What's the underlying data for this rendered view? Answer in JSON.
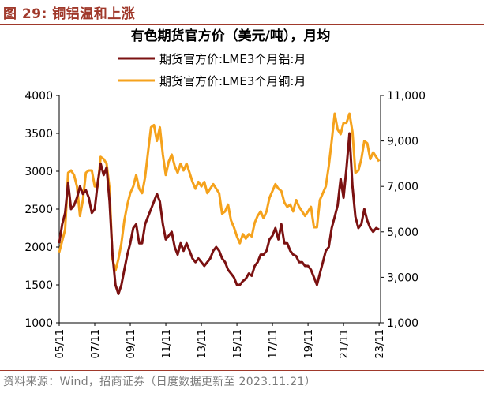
{
  "figure": {
    "label": "图 29:",
    "title": "铜铝温和上涨"
  },
  "source": "资料来源：Wind，招商证券（日度数据更新至 2023.11.21）",
  "colors": {
    "aluminum": "#7b1111",
    "copper": "#f5a21c",
    "accent": "#a0392b"
  },
  "chart_data": {
    "type": "line",
    "title": "有色期货官方价（美元/吨），月均",
    "x_ticks": [
      "05/11",
      "07/11",
      "09/11",
      "11/11",
      "13/11",
      "15/11",
      "17/11",
      "19/11",
      "21/11",
      "23/11"
    ],
    "legend_position": "top-center",
    "grid": false,
    "y_left": {
      "range": [
        1000,
        4000
      ],
      "ticks": [
        "1000",
        "1500",
        "2000",
        "2500",
        "3000",
        "3500",
        "4000"
      ],
      "tick_values": [
        1000,
        1500,
        2000,
        2500,
        3000,
        3500,
        4000
      ]
    },
    "y_right": {
      "range": [
        1000,
        11000
      ],
      "ticks": [
        "1,000",
        "3,000",
        "5,000",
        "7,000",
        "9,000",
        "11,000"
      ],
      "tick_values": [
        1000,
        3000,
        5000,
        7000,
        9000,
        11000
      ]
    },
    "series": [
      {
        "name": "期货官方价:LME3个月铝:月",
        "axis": "left",
        "color": "#7b1111",
        "points": [
          [
            "2005-11",
            2050
          ],
          [
            "2006-01",
            2300
          ],
          [
            "2006-03",
            2450
          ],
          [
            "2006-05",
            2850
          ],
          [
            "2006-07",
            2500
          ],
          [
            "2006-09",
            2550
          ],
          [
            "2006-11",
            2650
          ],
          [
            "2007-01",
            2800
          ],
          [
            "2007-03",
            2700
          ],
          [
            "2007-05",
            2750
          ],
          [
            "2007-07",
            2650
          ],
          [
            "2007-09",
            2450
          ],
          [
            "2007-11",
            2500
          ],
          [
            "2008-01",
            2850
          ],
          [
            "2008-03",
            3100
          ],
          [
            "2008-05",
            2950
          ],
          [
            "2008-07",
            3050
          ],
          [
            "2008-09",
            2600
          ],
          [
            "2008-11",
            1900
          ],
          [
            "2009-01",
            1500
          ],
          [
            "2009-03",
            1380
          ],
          [
            "2009-05",
            1500
          ],
          [
            "2009-07",
            1700
          ],
          [
            "2009-09",
            1900
          ],
          [
            "2009-11",
            2050
          ],
          [
            "2010-01",
            2250
          ],
          [
            "2010-03",
            2300
          ],
          [
            "2010-05",
            2050
          ],
          [
            "2010-07",
            2050
          ],
          [
            "2010-09",
            2300
          ],
          [
            "2010-11",
            2400
          ],
          [
            "2011-01",
            2500
          ],
          [
            "2011-03",
            2600
          ],
          [
            "2011-05",
            2700
          ],
          [
            "2011-07",
            2600
          ],
          [
            "2011-09",
            2300
          ],
          [
            "2011-11",
            2100
          ],
          [
            "2012-01",
            2150
          ],
          [
            "2012-03",
            2200
          ],
          [
            "2012-05",
            2000
          ],
          [
            "2012-07",
            1900
          ],
          [
            "2012-09",
            2050
          ],
          [
            "2012-11",
            1950
          ],
          [
            "2013-01",
            2050
          ],
          [
            "2013-03",
            1950
          ],
          [
            "2013-05",
            1850
          ],
          [
            "2013-07",
            1800
          ],
          [
            "2013-09",
            1850
          ],
          [
            "2013-11",
            1800
          ],
          [
            "2014-01",
            1750
          ],
          [
            "2014-03",
            1800
          ],
          [
            "2014-05",
            1850
          ],
          [
            "2014-07",
            1950
          ],
          [
            "2014-09",
            2000
          ],
          [
            "2014-11",
            1950
          ],
          [
            "2015-01",
            1850
          ],
          [
            "2015-03",
            1800
          ],
          [
            "2015-05",
            1700
          ],
          [
            "2015-07",
            1650
          ],
          [
            "2015-09",
            1600
          ],
          [
            "2015-11",
            1500
          ],
          [
            "2016-01",
            1500
          ],
          [
            "2016-03",
            1550
          ],
          [
            "2016-05",
            1580
          ],
          [
            "2016-07",
            1650
          ],
          [
            "2016-09",
            1620
          ],
          [
            "2016-11",
            1750
          ],
          [
            "2017-01",
            1800
          ],
          [
            "2017-03",
            1900
          ],
          [
            "2017-05",
            1900
          ],
          [
            "2017-07",
            1950
          ],
          [
            "2017-09",
            2100
          ],
          [
            "2017-11",
            2150
          ],
          [
            "2018-01",
            2250
          ],
          [
            "2018-03",
            2100
          ],
          [
            "2018-05",
            2300
          ],
          [
            "2018-07",
            2050
          ],
          [
            "2018-09",
            2050
          ],
          [
            "2018-11",
            1950
          ],
          [
            "2019-01",
            1900
          ],
          [
            "2019-03",
            1880
          ],
          [
            "2019-05",
            1800
          ],
          [
            "2019-07",
            1800
          ],
          [
            "2019-09",
            1750
          ],
          [
            "2019-11",
            1750
          ],
          [
            "2020-01",
            1700
          ],
          [
            "2020-03",
            1600
          ],
          [
            "2020-05",
            1500
          ],
          [
            "2020-07",
            1650
          ],
          [
            "2020-09",
            1800
          ],
          [
            "2020-11",
            1950
          ],
          [
            "2021-01",
            2000
          ],
          [
            "2021-03",
            2250
          ],
          [
            "2021-05",
            2400
          ],
          [
            "2021-07",
            2550
          ],
          [
            "2021-09",
            2900
          ],
          [
            "2021-11",
            2650
          ],
          [
            "2022-01",
            3050
          ],
          [
            "2022-03",
            3500
          ],
          [
            "2022-05",
            2800
          ],
          [
            "2022-07",
            2400
          ],
          [
            "2022-09",
            2250
          ],
          [
            "2022-11",
            2300
          ],
          [
            "2023-01",
            2500
          ],
          [
            "2023-03",
            2350
          ],
          [
            "2023-05",
            2250
          ],
          [
            "2023-07",
            2200
          ],
          [
            "2023-09",
            2250
          ],
          [
            "2023-11",
            2230
          ]
        ]
      },
      {
        "name": "期货官方价:LME3个月铜:月",
        "axis": "right",
        "color": "#f5a21c",
        "points": [
          [
            "2005-11",
            4100
          ],
          [
            "2006-01",
            4600
          ],
          [
            "2006-03",
            5100
          ],
          [
            "2006-05",
            7600
          ],
          [
            "2006-07",
            7700
          ],
          [
            "2006-09",
            7500
          ],
          [
            "2006-11",
            7000
          ],
          [
            "2007-01",
            5700
          ],
          [
            "2007-03",
            6400
          ],
          [
            "2007-05",
            7600
          ],
          [
            "2007-07",
            7700
          ],
          [
            "2007-09",
            7700
          ],
          [
            "2007-11",
            7000
          ],
          [
            "2008-01",
            7000
          ],
          [
            "2008-03",
            8300
          ],
          [
            "2008-05",
            8200
          ],
          [
            "2008-07",
            8000
          ],
          [
            "2008-09",
            6900
          ],
          [
            "2008-11",
            3800
          ],
          [
            "2009-01",
            3300
          ],
          [
            "2009-03",
            3800
          ],
          [
            "2009-05",
            4500
          ],
          [
            "2009-07",
            5500
          ],
          [
            "2009-09",
            6200
          ],
          [
            "2009-11",
            6700
          ],
          [
            "2010-01",
            7000
          ],
          [
            "2010-03",
            7500
          ],
          [
            "2010-05",
            6900
          ],
          [
            "2010-07",
            6700
          ],
          [
            "2010-09",
            7400
          ],
          [
            "2010-11",
            8500
          ],
          [
            "2011-01",
            9600
          ],
          [
            "2011-03",
            9700
          ],
          [
            "2011-05",
            9000
          ],
          [
            "2011-07",
            9600
          ],
          [
            "2011-09",
            8400
          ],
          [
            "2011-11",
            7500
          ],
          [
            "2012-01",
            8100
          ],
          [
            "2012-03",
            8400
          ],
          [
            "2012-05",
            7900
          ],
          [
            "2012-07",
            7600
          ],
          [
            "2012-09",
            8000
          ],
          [
            "2012-11",
            7700
          ],
          [
            "2013-01",
            8000
          ],
          [
            "2013-03",
            7600
          ],
          [
            "2013-05",
            7200
          ],
          [
            "2013-07",
            6900
          ],
          [
            "2013-09",
            7200
          ],
          [
            "2013-11",
            7000
          ],
          [
            "2014-01",
            7200
          ],
          [
            "2014-03",
            6700
          ],
          [
            "2014-05",
            6900
          ],
          [
            "2014-07",
            7100
          ],
          [
            "2014-09",
            6900
          ],
          [
            "2014-11",
            6700
          ],
          [
            "2015-01",
            5800
          ],
          [
            "2015-03",
            5900
          ],
          [
            "2015-05",
            6200
          ],
          [
            "2015-07",
            5500
          ],
          [
            "2015-09",
            5200
          ],
          [
            "2015-11",
            4800
          ],
          [
            "2016-01",
            4500
          ],
          [
            "2016-03",
            4900
          ],
          [
            "2016-05",
            4700
          ],
          [
            "2016-07",
            4900
          ],
          [
            "2016-09",
            4800
          ],
          [
            "2016-11",
            5400
          ],
          [
            "2017-01",
            5700
          ],
          [
            "2017-03",
            5900
          ],
          [
            "2017-05",
            5600
          ],
          [
            "2017-07",
            5900
          ],
          [
            "2017-09",
            6500
          ],
          [
            "2017-11",
            6800
          ],
          [
            "2018-01",
            7100
          ],
          [
            "2018-03",
            6900
          ],
          [
            "2018-05",
            6800
          ],
          [
            "2018-07",
            6300
          ],
          [
            "2018-09",
            6100
          ],
          [
            "2018-11",
            6200
          ],
          [
            "2019-01",
            5900
          ],
          [
            "2019-03",
            6400
          ],
          [
            "2019-05",
            6100
          ],
          [
            "2019-07",
            5900
          ],
          [
            "2019-09",
            5700
          ],
          [
            "2019-11",
            5900
          ],
          [
            "2020-01",
            6100
          ],
          [
            "2020-03",
            5200
          ],
          [
            "2020-05",
            5200
          ],
          [
            "2020-07",
            6400
          ],
          [
            "2020-09",
            6700
          ],
          [
            "2020-11",
            7000
          ],
          [
            "2021-01",
            7900
          ],
          [
            "2021-03",
            9000
          ],
          [
            "2021-05",
            10200
          ],
          [
            "2021-07",
            9500
          ],
          [
            "2021-09",
            9300
          ],
          [
            "2021-11",
            9800
          ],
          [
            "2022-01",
            9800
          ],
          [
            "2022-03",
            10200
          ],
          [
            "2022-05",
            9400
          ],
          [
            "2022-07",
            7600
          ],
          [
            "2022-09",
            7700
          ],
          [
            "2022-11",
            8200
          ],
          [
            "2023-01",
            9000
          ],
          [
            "2023-03",
            8900
          ],
          [
            "2023-05",
            8200
          ],
          [
            "2023-07",
            8500
          ],
          [
            "2023-09",
            8300
          ],
          [
            "2023-11",
            8100
          ]
        ]
      }
    ]
  }
}
